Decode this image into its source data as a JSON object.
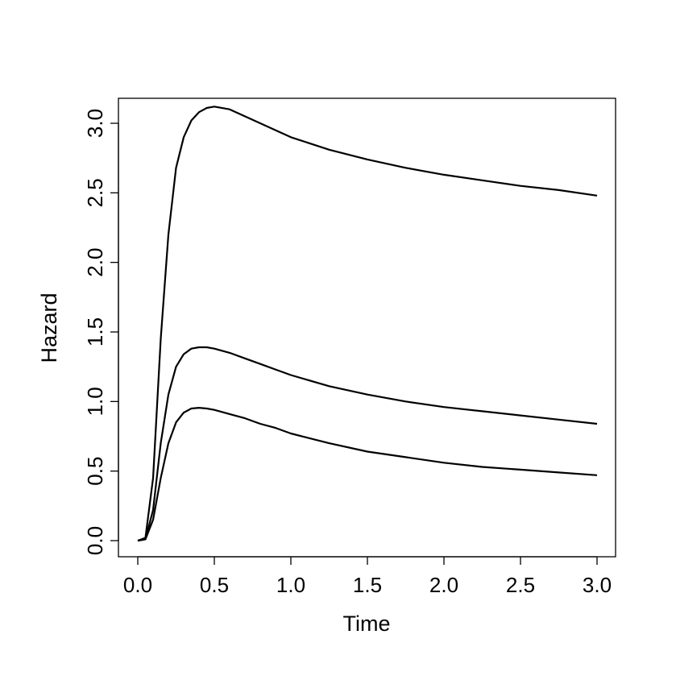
{
  "chart_data": {
    "type": "line",
    "title": "",
    "xlabel": "Time",
    "ylabel": "Hazard",
    "xlim": [
      0,
      3
    ],
    "ylim": [
      0,
      3.1
    ],
    "x_ticks": [
      "0.0",
      "0.5",
      "1.0",
      "1.5",
      "2.0",
      "2.5",
      "3.0"
    ],
    "y_ticks": [
      "0.0",
      "0.5",
      "1.0",
      "1.5",
      "2.0",
      "2.5",
      "3.0"
    ],
    "grid": false,
    "legend": "none",
    "line_color": "#000000",
    "x": [
      0.0,
      0.05,
      0.1,
      0.15,
      0.2,
      0.25,
      0.3,
      0.35,
      0.4,
      0.45,
      0.5,
      0.6,
      0.7,
      0.8,
      0.9,
      1.0,
      1.25,
      1.5,
      1.75,
      2.0,
      2.25,
      2.5,
      2.75,
      3.0
    ],
    "series": [
      {
        "values": [
          0.0,
          0.02,
          0.45,
          1.45,
          2.2,
          2.68,
          2.9,
          3.02,
          3.08,
          3.11,
          3.12,
          3.1,
          3.05,
          3.0,
          2.95,
          2.9,
          2.81,
          2.74,
          2.68,
          2.63,
          2.59,
          2.55,
          2.52,
          2.48
        ]
      },
      {
        "values": [
          0.0,
          0.01,
          0.22,
          0.7,
          1.05,
          1.25,
          1.34,
          1.38,
          1.39,
          1.39,
          1.38,
          1.35,
          1.31,
          1.27,
          1.23,
          1.19,
          1.11,
          1.05,
          1.0,
          0.96,
          0.93,
          0.9,
          0.87,
          0.84
        ]
      },
      {
        "values": [
          0.0,
          0.01,
          0.15,
          0.45,
          0.7,
          0.85,
          0.92,
          0.95,
          0.955,
          0.95,
          0.94,
          0.91,
          0.88,
          0.84,
          0.81,
          0.77,
          0.7,
          0.64,
          0.6,
          0.56,
          0.53,
          0.51,
          0.49,
          0.47
        ]
      }
    ]
  }
}
